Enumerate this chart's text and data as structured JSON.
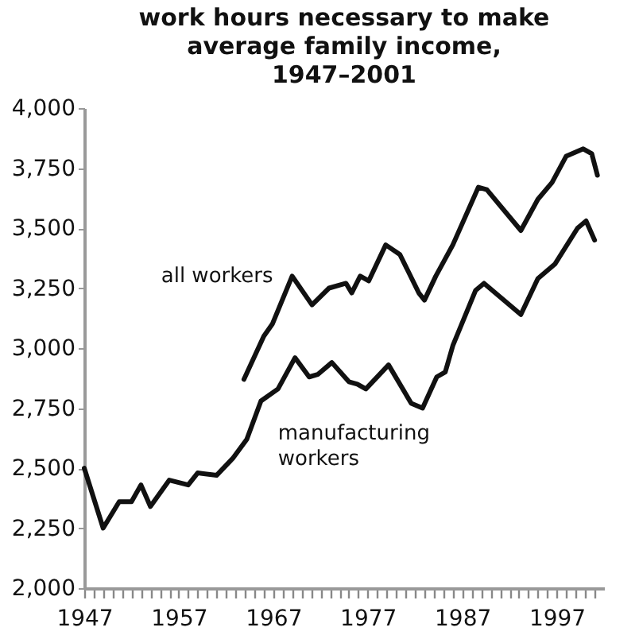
{
  "chart_data": {
    "type": "line",
    "title": "work hours necessary to make average family income, 1947–2001",
    "xlim": [
      1947,
      2002
    ],
    "xticks": [
      {
        "value": 1947,
        "label": "1947"
      },
      {
        "value": 1948,
        "label": null
      },
      {
        "value": 1949,
        "label": null
      },
      {
        "value": 1950,
        "label": null
      },
      {
        "value": 1951,
        "label": null
      },
      {
        "value": 1952,
        "label": null
      },
      {
        "value": 1953,
        "label": null
      },
      {
        "value": 1954,
        "label": null
      },
      {
        "value": 1955,
        "label": null
      },
      {
        "value": 1956,
        "label": null
      },
      {
        "value": 1957,
        "label": "1957"
      },
      {
        "value": 1958,
        "label": null
      },
      {
        "value": 1959,
        "label": null
      },
      {
        "value": 1960,
        "label": null
      },
      {
        "value": 1961,
        "label": null
      },
      {
        "value": 1962,
        "label": null
      },
      {
        "value": 1963,
        "label": null
      },
      {
        "value": 1964,
        "label": null
      },
      {
        "value": 1965,
        "label": null
      },
      {
        "value": 1966,
        "label": null
      },
      {
        "value": 1967,
        "label": "1967"
      },
      {
        "value": 1968,
        "label": null
      },
      {
        "value": 1969,
        "label": null
      },
      {
        "value": 1970,
        "label": null
      },
      {
        "value": 1971,
        "label": null
      },
      {
        "value": 1972,
        "label": null
      },
      {
        "value": 1973,
        "label": null
      },
      {
        "value": 1974,
        "label": null
      },
      {
        "value": 1975,
        "label": null
      },
      {
        "value": 1976,
        "label": null
      },
      {
        "value": 1977,
        "label": "1977"
      },
      {
        "value": 1978,
        "label": null
      },
      {
        "value": 1979,
        "label": null
      },
      {
        "value": 1980,
        "label": null
      },
      {
        "value": 1981,
        "label": null
      },
      {
        "value": 1982,
        "label": null
      },
      {
        "value": 1983,
        "label": null
      },
      {
        "value": 1984,
        "label": null
      },
      {
        "value": 1985,
        "label": null
      },
      {
        "value": 1986,
        "label": null
      },
      {
        "value": 1987,
        "label": "1987"
      },
      {
        "value": 1988,
        "label": null
      },
      {
        "value": 1989,
        "label": null
      },
      {
        "value": 1990,
        "label": null
      },
      {
        "value": 1991,
        "label": null
      },
      {
        "value": 1992,
        "label": null
      },
      {
        "value": 1993,
        "label": null
      },
      {
        "value": 1994,
        "label": null
      },
      {
        "value": 1995,
        "label": null
      },
      {
        "value": 1996,
        "label": null
      },
      {
        "value": 1997,
        "label": "1997"
      },
      {
        "value": 1998,
        "label": null
      },
      {
        "value": 1999,
        "label": null
      },
      {
        "value": 2000,
        "label": null
      },
      {
        "value": 2001,
        "label": null
      }
    ],
    "ylim": [
      2000,
      4000
    ],
    "yticks": [
      {
        "value": 2000,
        "label": "2,000"
      },
      {
        "value": 2250,
        "label": "2,250"
      },
      {
        "value": 2500,
        "label": "2,500"
      },
      {
        "value": 2750,
        "label": "2,750"
      },
      {
        "value": 3000,
        "label": "3,000"
      },
      {
        "value": 3250,
        "label": "3,250"
      },
      {
        "value": 3500,
        "label": "3,500"
      },
      {
        "value": 3750,
        "label": "3,750"
      },
      {
        "value": 4000,
        "label": "4,000"
      }
    ],
    "grid": false,
    "marker": "none",
    "line_style": "solid",
    "series": [
      {
        "name": "all workers",
        "color": "#111111",
        "x": [
          1963.9,
          1966,
          1966.9,
          1969,
          1971.1,
          1972.9,
          1974.7,
          1975.3,
          1976.2,
          1977.1,
          1978.9,
          1980.4,
          1982.4,
          1983,
          1984.2,
          1986,
          1988.7,
          1989.6,
          1993.2,
          1995,
          1996.5,
          1998,
          1999.8,
          2000.7,
          2001.3
        ],
        "values": [
          2870,
          3050,
          3100,
          3300,
          3180,
          3250,
          3270,
          3230,
          3300,
          3280,
          3430,
          3390,
          3230,
          3200,
          3300,
          3430,
          3670,
          3660,
          3490,
          3620,
          3690,
          3800,
          3830,
          3810,
          3720
        ]
      },
      {
        "name": "manufacturing workers",
        "color": "#111111",
        "x": [
          1947,
          1949,
          1950.7,
          1952,
          1953,
          1954,
          1956,
          1958,
          1959,
          1961,
          1962.7,
          1964.2,
          1965.7,
          1967.5,
          1969.3,
          1970.8,
          1971.7,
          1973.2,
          1975,
          1975.9,
          1976.8,
          1979.2,
          1981.6,
          1982.8,
          1984.3,
          1985.2,
          1986,
          1988.4,
          1989.3,
          1993.2,
          1995,
          1996.8,
          1999.2,
          2000.1,
          2001
        ],
        "values": [
          2500,
          2250,
          2360,
          2360,
          2430,
          2340,
          2450,
          2430,
          2480,
          2470,
          2540,
          2620,
          2780,
          2830,
          2960,
          2880,
          2890,
          2940,
          2860,
          2850,
          2830,
          2930,
          2770,
          2750,
          2880,
          2900,
          3010,
          3240,
          3270,
          3140,
          3290,
          3350,
          3500,
          3530,
          3450
        ]
      }
    ]
  }
}
